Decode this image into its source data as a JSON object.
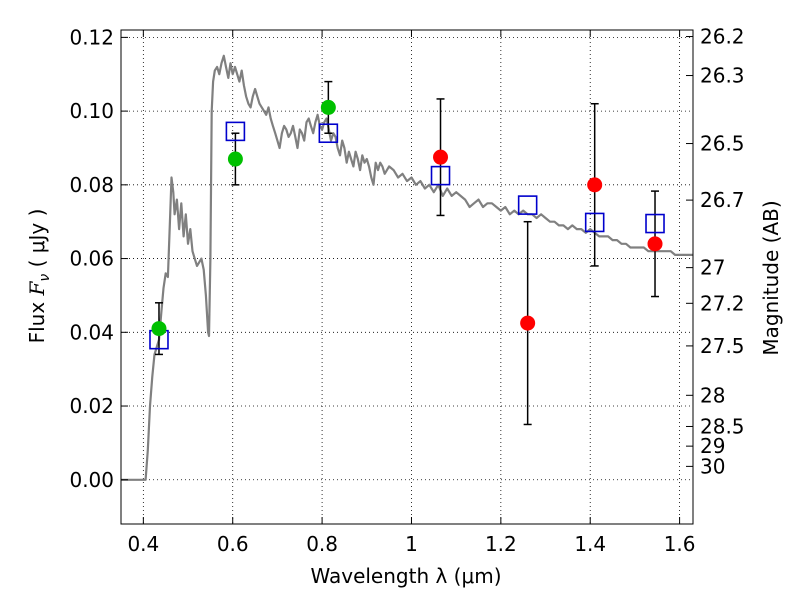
{
  "chart_data": {
    "type": "scatter",
    "xlabel": "Wavelength  λ (μm)",
    "ylabel_prefix": "Flux  ",
    "ylabel_symbol": "F",
    "ylabel_sub": "ν",
    "ylabel_suffix": "  ( μJy )",
    "y2label": "Magnitude (AB)",
    "xlim": [
      0.35,
      1.63
    ],
    "ylim": [
      -0.012,
      0.122
    ],
    "xticks": [
      {
        "v": 0.4,
        "label": "0.4"
      },
      {
        "v": 0.6,
        "label": "0.6"
      },
      {
        "v": 0.8,
        "label": "0.8"
      },
      {
        "v": 1.0,
        "label": "1"
      },
      {
        "v": 1.2,
        "label": "1.2"
      },
      {
        "v": 1.4,
        "label": "1.4"
      },
      {
        "v": 1.6,
        "label": "1.6"
      }
    ],
    "yticks": [
      {
        "v": 0.0,
        "label": "0.00"
      },
      {
        "v": 0.02,
        "label": "0.02"
      },
      {
        "v": 0.04,
        "label": "0.04"
      },
      {
        "v": 0.06,
        "label": "0.06"
      },
      {
        "v": 0.08,
        "label": "0.08"
      },
      {
        "v": 0.1,
        "label": "0.10"
      },
      {
        "v": 0.12,
        "label": "0.12"
      }
    ],
    "mag_ticks": [
      {
        "mag": 26.2,
        "label": "26.2"
      },
      {
        "mag": 26.3,
        "label": "26.3"
      },
      {
        "mag": 26.5,
        "label": "26.5"
      },
      {
        "mag": 26.7,
        "label": "26.7"
      },
      {
        "mag": 27.0,
        "label": "27"
      },
      {
        "mag": 27.2,
        "label": "27.2"
      },
      {
        "mag": 27.5,
        "label": "27.5"
      },
      {
        "mag": 28.0,
        "label": "28"
      },
      {
        "mag": 28.5,
        "label": "28.5"
      },
      {
        "mag": 29.0,
        "label": "29"
      },
      {
        "mag": 30.0,
        "label": "30"
      }
    ],
    "grid": true,
    "colors": {
      "model": "#808080",
      "green": "#00c000",
      "red": "#ff0000",
      "square": "#0000cc",
      "errorbar": "#000000"
    },
    "model_spectrum": [
      [
        0.35,
        0.0
      ],
      [
        0.4,
        0.0
      ],
      [
        0.405,
        0.0
      ],
      [
        0.41,
        0.008
      ],
      [
        0.415,
        0.02
      ],
      [
        0.42,
        0.028
      ],
      [
        0.425,
        0.034
      ],
      [
        0.43,
        0.036
      ],
      [
        0.435,
        0.038
      ],
      [
        0.44,
        0.045
      ],
      [
        0.445,
        0.052
      ],
      [
        0.45,
        0.056
      ],
      [
        0.455,
        0.055
      ],
      [
        0.46,
        0.072
      ],
      [
        0.463,
        0.082
      ],
      [
        0.467,
        0.078
      ],
      [
        0.47,
        0.072
      ],
      [
        0.475,
        0.076
      ],
      [
        0.48,
        0.068
      ],
      [
        0.485,
        0.075
      ],
      [
        0.49,
        0.066
      ],
      [
        0.495,
        0.072
      ],
      [
        0.5,
        0.064
      ],
      [
        0.505,
        0.068
      ],
      [
        0.51,
        0.062
      ],
      [
        0.515,
        0.06
      ],
      [
        0.52,
        0.058
      ],
      [
        0.525,
        0.059
      ],
      [
        0.53,
        0.06
      ],
      [
        0.535,
        0.057
      ],
      [
        0.54,
        0.05
      ],
      [
        0.545,
        0.04
      ],
      [
        0.547,
        0.039
      ],
      [
        0.55,
        0.06
      ],
      [
        0.553,
        0.1
      ],
      [
        0.556,
        0.108
      ],
      [
        0.56,
        0.111
      ],
      [
        0.565,
        0.112
      ],
      [
        0.57,
        0.11
      ],
      [
        0.575,
        0.113
      ],
      [
        0.58,
        0.115
      ],
      [
        0.585,
        0.112
      ],
      [
        0.59,
        0.109
      ],
      [
        0.595,
        0.113
      ],
      [
        0.6,
        0.11
      ],
      [
        0.605,
        0.112
      ],
      [
        0.61,
        0.11
      ],
      [
        0.615,
        0.108
      ],
      [
        0.62,
        0.111
      ],
      [
        0.625,
        0.107
      ],
      [
        0.63,
        0.104
      ],
      [
        0.635,
        0.102
      ],
      [
        0.64,
        0.101
      ],
      [
        0.645,
        0.104
      ],
      [
        0.65,
        0.106
      ],
      [
        0.655,
        0.104
      ],
      [
        0.66,
        0.102
      ],
      [
        0.665,
        0.101
      ],
      [
        0.67,
        0.1
      ],
      [
        0.675,
        0.099
      ],
      [
        0.68,
        0.101
      ],
      [
        0.685,
        0.098
      ],
      [
        0.69,
        0.096
      ],
      [
        0.695,
        0.094
      ],
      [
        0.7,
        0.092
      ],
      [
        0.705,
        0.09
      ],
      [
        0.71,
        0.094
      ],
      [
        0.715,
        0.096
      ],
      [
        0.72,
        0.095
      ],
      [
        0.725,
        0.093
      ],
      [
        0.73,
        0.094
      ],
      [
        0.735,
        0.096
      ],
      [
        0.74,
        0.093
      ],
      [
        0.745,
        0.09
      ],
      [
        0.75,
        0.095
      ],
      [
        0.755,
        0.094
      ],
      [
        0.76,
        0.092
      ],
      [
        0.765,
        0.097
      ],
      [
        0.77,
        0.098
      ],
      [
        0.775,
        0.096
      ],
      [
        0.78,
        0.094
      ],
      [
        0.785,
        0.097
      ],
      [
        0.79,
        0.099
      ],
      [
        0.795,
        0.096
      ],
      [
        0.8,
        0.095
      ],
      [
        0.805,
        0.097
      ],
      [
        0.81,
        0.098
      ],
      [
        0.815,
        0.095
      ],
      [
        0.82,
        0.092
      ],
      [
        0.825,
        0.094
      ],
      [
        0.83,
        0.093
      ],
      [
        0.835,
        0.09
      ],
      [
        0.84,
        0.088
      ],
      [
        0.845,
        0.092
      ],
      [
        0.85,
        0.09
      ],
      [
        0.855,
        0.086
      ],
      [
        0.86,
        0.089
      ],
      [
        0.865,
        0.087
      ],
      [
        0.87,
        0.085
      ],
      [
        0.875,
        0.089
      ],
      [
        0.88,
        0.087
      ],
      [
        0.885,
        0.084
      ],
      [
        0.89,
        0.088
      ],
      [
        0.895,
        0.086
      ],
      [
        0.9,
        0.087
      ],
      [
        0.905,
        0.085
      ],
      [
        0.91,
        0.082
      ],
      [
        0.915,
        0.08
      ],
      [
        0.92,
        0.086
      ],
      [
        0.925,
        0.084
      ],
      [
        0.93,
        0.086
      ],
      [
        0.935,
        0.085
      ],
      [
        0.94,
        0.083
      ],
      [
        0.95,
        0.085
      ],
      [
        0.96,
        0.084
      ],
      [
        0.97,
        0.082
      ],
      [
        0.98,
        0.083
      ],
      [
        0.99,
        0.081
      ],
      [
        1.0,
        0.082
      ],
      [
        1.01,
        0.08
      ],
      [
        1.02,
        0.081
      ],
      [
        1.03,
        0.079
      ],
      [
        1.04,
        0.08
      ],
      [
        1.05,
        0.078
      ],
      [
        1.06,
        0.08
      ],
      [
        1.07,
        0.077
      ],
      [
        1.08,
        0.079
      ],
      [
        1.09,
        0.077
      ],
      [
        1.1,
        0.078
      ],
      [
        1.11,
        0.077
      ],
      [
        1.12,
        0.076
      ],
      [
        1.13,
        0.074
      ],
      [
        1.14,
        0.075
      ],
      [
        1.15,
        0.076
      ],
      [
        1.16,
        0.074
      ],
      [
        1.17,
        0.075
      ],
      [
        1.18,
        0.075
      ],
      [
        1.19,
        0.074
      ],
      [
        1.2,
        0.073
      ],
      [
        1.21,
        0.074
      ],
      [
        1.22,
        0.072
      ],
      [
        1.23,
        0.073
      ],
      [
        1.24,
        0.072
      ],
      [
        1.25,
        0.073
      ],
      [
        1.26,
        0.072
      ],
      [
        1.27,
        0.072
      ],
      [
        1.28,
        0.071
      ],
      [
        1.29,
        0.072
      ],
      [
        1.3,
        0.071
      ],
      [
        1.31,
        0.07
      ],
      [
        1.32,
        0.07
      ],
      [
        1.33,
        0.069
      ],
      [
        1.34,
        0.069
      ],
      [
        1.35,
        0.068
      ],
      [
        1.36,
        0.069
      ],
      [
        1.37,
        0.068
      ],
      [
        1.38,
        0.068
      ],
      [
        1.39,
        0.067
      ],
      [
        1.4,
        0.068
      ],
      [
        1.41,
        0.067
      ],
      [
        1.42,
        0.066
      ],
      [
        1.43,
        0.066
      ],
      [
        1.44,
        0.066
      ],
      [
        1.45,
        0.065
      ],
      [
        1.46,
        0.065
      ],
      [
        1.47,
        0.064
      ],
      [
        1.48,
        0.064
      ],
      [
        1.49,
        0.063
      ],
      [
        1.5,
        0.063
      ],
      [
        1.51,
        0.063
      ],
      [
        1.52,
        0.063
      ],
      [
        1.53,
        0.062
      ],
      [
        1.54,
        0.062
      ],
      [
        1.55,
        0.062
      ],
      [
        1.56,
        0.062
      ],
      [
        1.57,
        0.062
      ],
      [
        1.58,
        0.062
      ],
      [
        1.59,
        0.061
      ],
      [
        1.6,
        0.061
      ],
      [
        1.61,
        0.061
      ],
      [
        1.62,
        0.061
      ],
      [
        1.63,
        0.061
      ]
    ],
    "model_photometry": [
      {
        "x": 0.435,
        "y": 0.038
      },
      {
        "x": 0.606,
        "y": 0.0945
      },
      {
        "x": 0.814,
        "y": 0.094
      },
      {
        "x": 1.065,
        "y": 0.0825
      },
      {
        "x": 1.26,
        "y": 0.0745
      },
      {
        "x": 1.41,
        "y": 0.0698
      },
      {
        "x": 1.545,
        "y": 0.0695
      }
    ],
    "observed_optical": [
      {
        "x": 0.435,
        "y": 0.041,
        "err": 0.007
      },
      {
        "x": 0.606,
        "y": 0.087,
        "err": 0.007
      },
      {
        "x": 0.814,
        "y": 0.101,
        "err": 0.007
      }
    ],
    "observed_nir": [
      {
        "x": 1.065,
        "y": 0.0875,
        "err": 0.0158
      },
      {
        "x": 1.26,
        "y": 0.0425,
        "err": 0.0275
      },
      {
        "x": 1.41,
        "y": 0.08,
        "err": 0.022
      },
      {
        "x": 1.545,
        "y": 0.064,
        "err": 0.0143
      }
    ]
  }
}
